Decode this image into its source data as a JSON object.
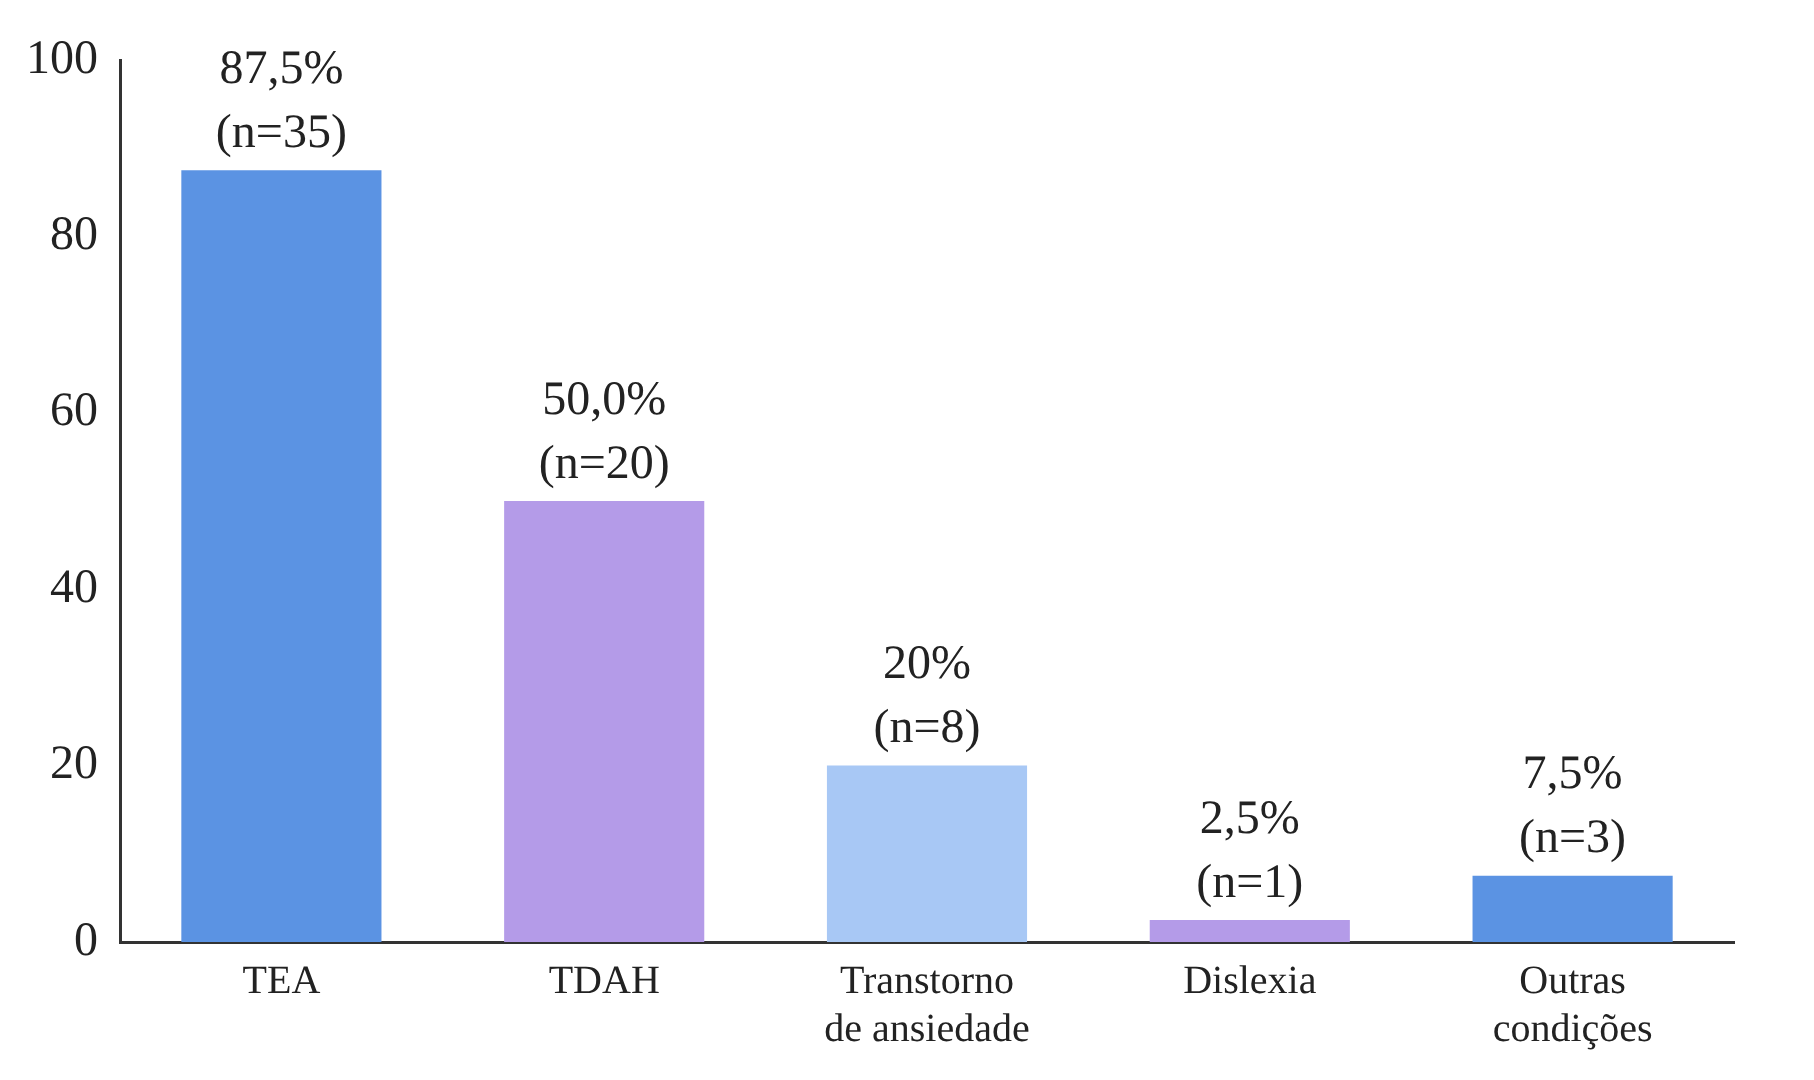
{
  "chart_data": {
    "type": "bar",
    "categories": [
      "TEA",
      "TDAH",
      "Transtorno de ansiedade",
      "Dislexia",
      "Outras condições"
    ],
    "values": [
      87.5,
      50,
      20,
      2.5,
      7.5
    ],
    "colors": [
      "#5b93e3",
      "#b49be8",
      "#a8c8f5",
      "#b49be8",
      "#5b93e3"
    ],
    "value_labels": [
      "87,5%\n(n=35)",
      "50,0%\n(n=20)",
      "20%\n(n=8)",
      "2,5%\n(n=1)",
      "7,5%\n(n=3)"
    ],
    "ylim": [
      0,
      100
    ],
    "yticks": [
      0,
      20,
      40,
      60,
      80,
      100
    ],
    "grid": false,
    "legend": false
  }
}
